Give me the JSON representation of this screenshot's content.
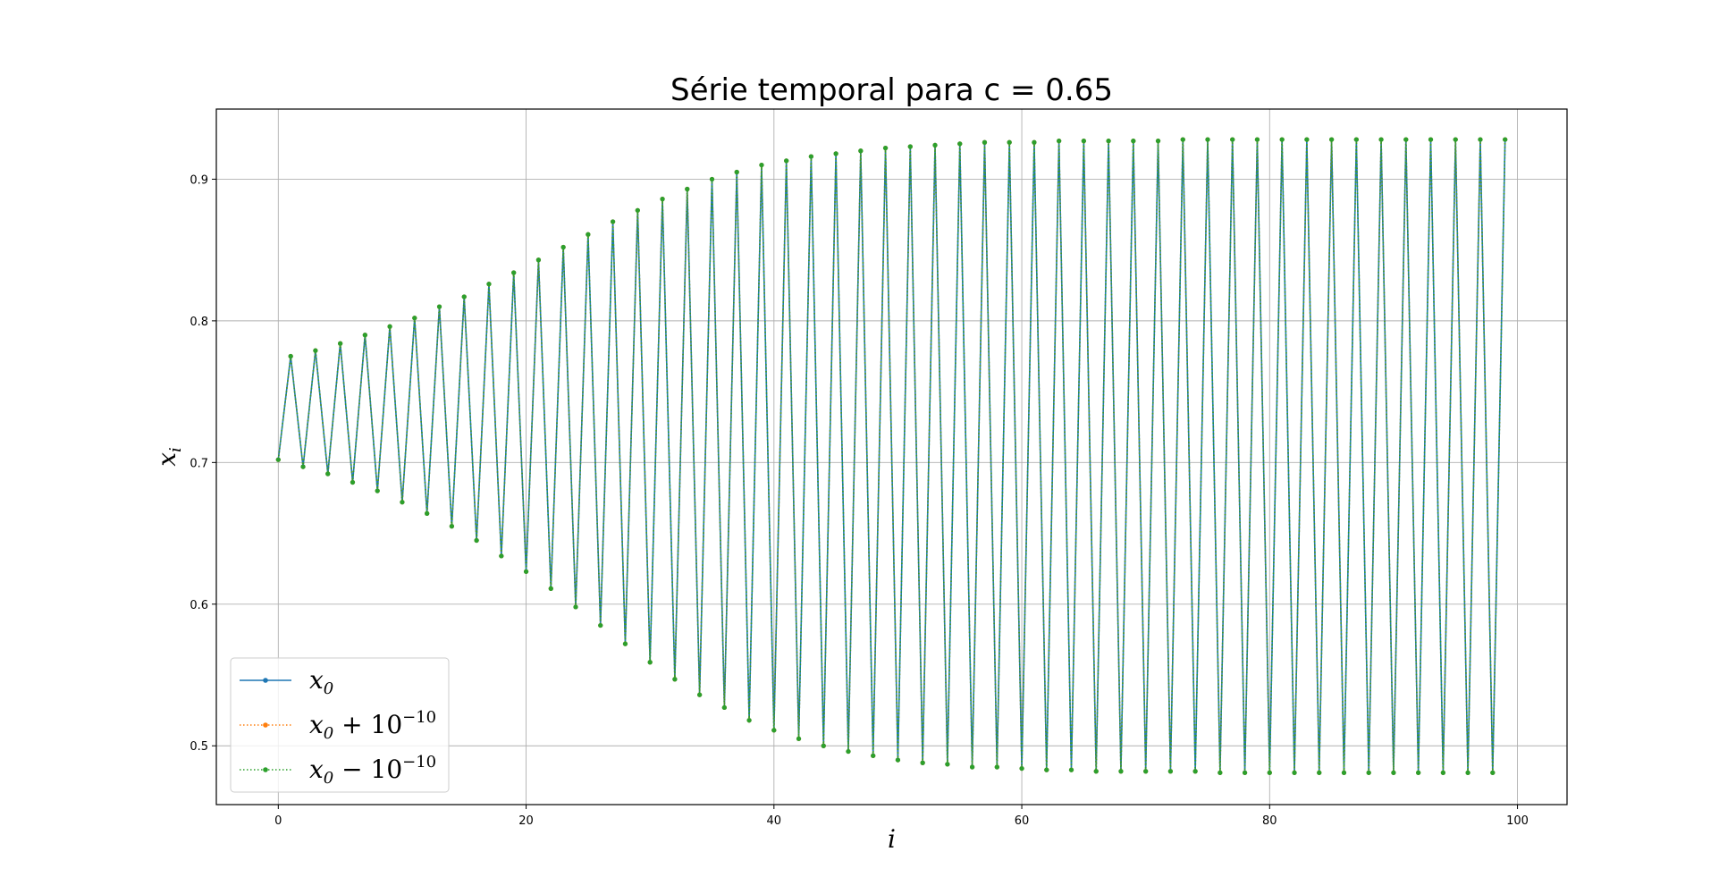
{
  "chart_data": {
    "type": "line",
    "title": "Série temporal para c = 0.65",
    "xlabel": "i",
    "ylabel": "x",
    "ylabel_sub": "i",
    "xlim": [
      -5,
      104
    ],
    "ylim": [
      0.4585,
      0.9495
    ],
    "xticks": [
      0,
      20,
      40,
      60,
      80,
      100
    ],
    "yticks": [
      0.5,
      0.6,
      0.7,
      0.8,
      0.9
    ],
    "grid": true,
    "legend_position": "lower-left",
    "colors": {
      "series0": "#1f77b4",
      "series1": "#ff7f0e",
      "series2": "#2ca02c",
      "grid": "#b0b0b0"
    },
    "series": [
      {
        "legend_base": "x",
        "legend_sub": "0",
        "legend_suffix": "",
        "legend_exp": "",
        "linestyle": "solid"
      },
      {
        "legend_base": "x",
        "legend_sub": "0",
        "legend_suffix": " + 10",
        "legend_exp": "−10",
        "linestyle": "dotted"
      },
      {
        "legend_base": "x",
        "legend_sub": "0",
        "legend_suffix": " − 10",
        "legend_exp": "−10",
        "linestyle": "dotted"
      }
    ],
    "x": [
      0,
      1,
      2,
      3,
      4,
      5,
      6,
      7,
      8,
      9,
      10,
      11,
      12,
      13,
      14,
      15,
      16,
      17,
      18,
      19,
      20,
      21,
      22,
      23,
      24,
      25,
      26,
      27,
      28,
      29,
      30,
      31,
      32,
      33,
      34,
      35,
      36,
      37,
      38,
      39,
      40,
      41,
      42,
      43,
      44,
      45,
      46,
      47,
      48,
      49,
      50,
      51,
      52,
      53,
      54,
      55,
      56,
      57,
      58,
      59,
      60,
      61,
      62,
      63,
      64,
      65,
      66,
      67,
      68,
      69,
      70,
      71,
      72,
      73,
      74,
      75,
      76,
      77,
      78,
      79,
      80,
      81,
      82,
      83,
      84,
      85,
      86,
      87,
      88,
      89,
      90,
      91,
      92,
      93,
      94,
      95,
      96,
      97,
      98,
      99
    ],
    "y": [
      0.702,
      0.775,
      0.697,
      0.779,
      0.692,
      0.784,
      0.686,
      0.79,
      0.68,
      0.796,
      0.672,
      0.802,
      0.664,
      0.81,
      0.655,
      0.817,
      0.645,
      0.826,
      0.634,
      0.834,
      0.623,
      0.843,
      0.611,
      0.852,
      0.598,
      0.861,
      0.585,
      0.87,
      0.572,
      0.878,
      0.559,
      0.886,
      0.547,
      0.893,
      0.536,
      0.9,
      0.527,
      0.905,
      0.518,
      0.91,
      0.511,
      0.913,
      0.505,
      0.916,
      0.5,
      0.918,
      0.496,
      0.92,
      0.493,
      0.922,
      0.49,
      0.923,
      0.488,
      0.924,
      0.487,
      0.925,
      0.485,
      0.926,
      0.485,
      0.926,
      0.484,
      0.926,
      0.483,
      0.927,
      0.483,
      0.927,
      0.482,
      0.927,
      0.482,
      0.927,
      0.482,
      0.927,
      0.482,
      0.928,
      0.482,
      0.928,
      0.481,
      0.928,
      0.481,
      0.928,
      0.481,
      0.928,
      0.481,
      0.928,
      0.481,
      0.928,
      0.481,
      0.928,
      0.481,
      0.928,
      0.481,
      0.928,
      0.481,
      0.928,
      0.481,
      0.928,
      0.481,
      0.928,
      0.481,
      0.928
    ]
  }
}
